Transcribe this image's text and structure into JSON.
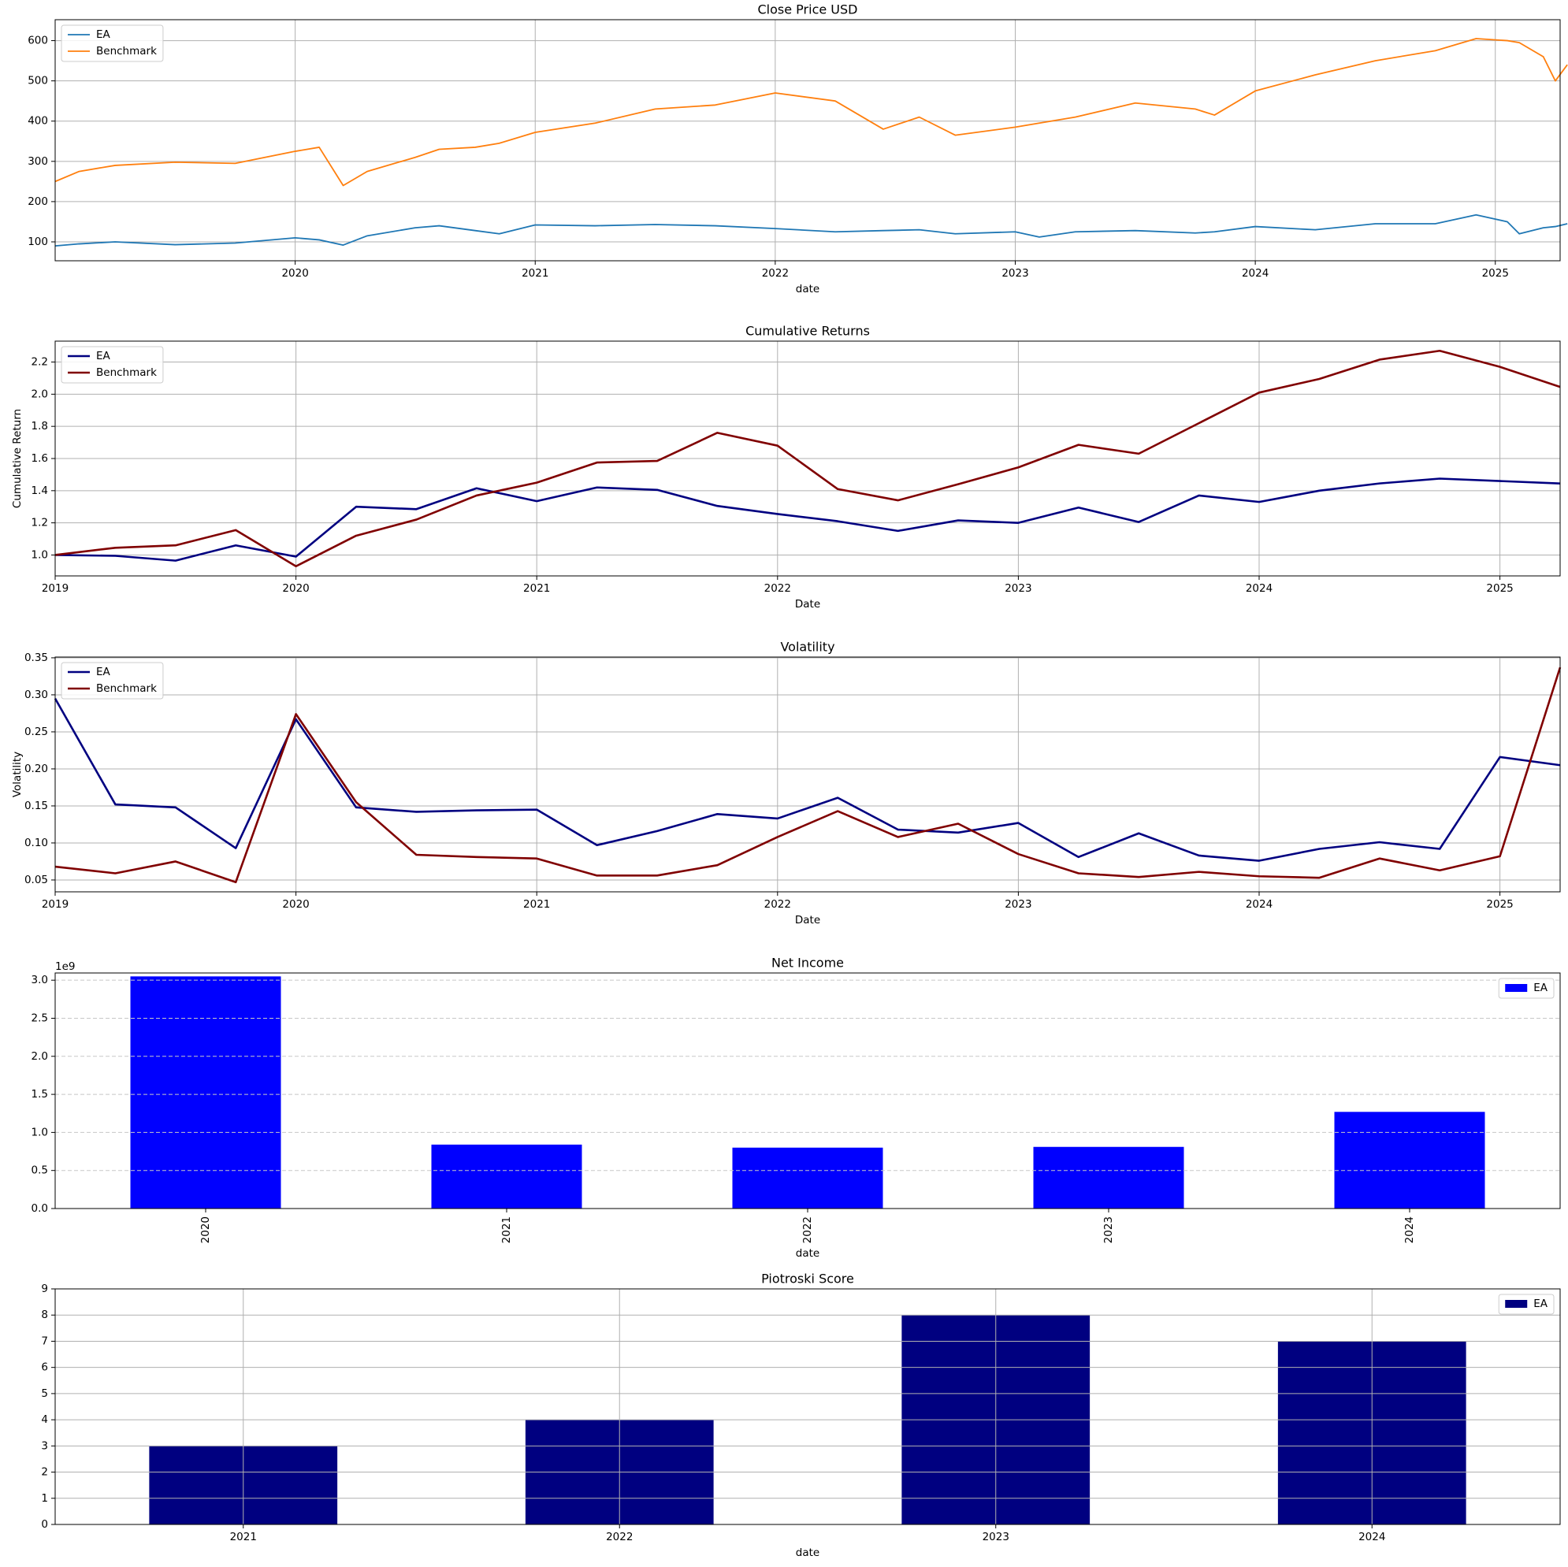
{
  "chart_data": [
    {
      "type": "line",
      "title": "Close Price USD",
      "xlabel": "date",
      "x": [
        2019.0,
        2019.1,
        2019.25,
        2019.5,
        2019.75,
        2020.0,
        2020.1,
        2020.2,
        2020.3,
        2020.5,
        2020.6,
        2020.75,
        2020.85,
        2021.0,
        2021.25,
        2021.5,
        2021.75,
        2022.0,
        2022.25,
        2022.45,
        2022.6,
        2022.75,
        2023.0,
        2023.1,
        2023.25,
        2023.5,
        2023.75,
        2023.83,
        2024.0,
        2024.25,
        2024.5,
        2024.75,
        2024.92,
        2025.05,
        2025.1,
        2025.2,
        2025.25,
        2025.3
      ],
      "series": [
        {
          "name": "EA",
          "color": "#1f77b4",
          "values": [
            90,
            95,
            100,
            93,
            97,
            110,
            105,
            92,
            115,
            135,
            140,
            128,
            120,
            142,
            140,
            143,
            140,
            133,
            125,
            128,
            130,
            120,
            125,
            112,
            125,
            128,
            122,
            125,
            138,
            130,
            145,
            145,
            167,
            150,
            120,
            135,
            138,
            145
          ]
        },
        {
          "name": "Benchmark",
          "color": "#ff7f0e",
          "values": [
            250,
            275,
            290,
            298,
            295,
            325,
            335,
            240,
            275,
            310,
            330,
            335,
            345,
            372,
            395,
            430,
            440,
            470,
            450,
            380,
            410,
            365,
            385,
            395,
            410,
            445,
            430,
            415,
            475,
            515,
            550,
            575,
            605,
            600,
            595,
            560,
            500,
            540
          ]
        }
      ],
      "xlim": [
        2019.0,
        2025.27
      ],
      "xticks": [
        2020,
        2021,
        2022,
        2023,
        2024,
        2025
      ],
      "ylim": [
        53,
        652
      ],
      "yticks": [
        100,
        200,
        300,
        400,
        500,
        600
      ],
      "grid": "both",
      "legend": "upper left"
    },
    {
      "type": "line",
      "title": "Cumulative Returns",
      "xlabel": "Date",
      "ylabel": "Cumulative Return",
      "x": [
        2019,
        2019.25,
        2019.5,
        2019.75,
        2020,
        2020.25,
        2020.5,
        2020.75,
        2021,
        2021.25,
        2021.5,
        2021.75,
        2022,
        2022.25,
        2022.5,
        2022.75,
        2023,
        2023.25,
        2023.5,
        2023.75,
        2024,
        2024.25,
        2024.5,
        2024.75,
        2025,
        2025.25
      ],
      "series": [
        {
          "name": "EA",
          "color": "#000080",
          "values": [
            1.0,
            0.995,
            0.965,
            1.06,
            0.99,
            1.3,
            1.285,
            1.415,
            1.335,
            1.42,
            1.405,
            1.305,
            1.255,
            1.21,
            1.15,
            1.215,
            1.2,
            1.295,
            1.205,
            1.37,
            1.33,
            1.4,
            1.445,
            1.475,
            1.46,
            1.445
          ]
        },
        {
          "name": "Benchmark",
          "color": "#800000",
          "values": [
            1.0,
            1.045,
            1.06,
            1.155,
            0.93,
            1.12,
            1.22,
            1.37,
            1.45,
            1.575,
            1.585,
            1.76,
            1.68,
            1.41,
            1.34,
            1.44,
            1.545,
            1.685,
            1.63,
            1.82,
            2.01,
            2.095,
            2.215,
            2.27,
            2.17,
            2.045
          ]
        }
      ],
      "xlim": [
        2019,
        2025.25
      ],
      "xticks": [
        2019,
        2020,
        2021,
        2022,
        2023,
        2024,
        2025
      ],
      "ylim": [
        0.87,
        2.33
      ],
      "yticks": [
        {
          "value": 1,
          "label": "1.0"
        },
        1.2,
        1.4,
        1.6,
        1.8,
        {
          "value": 2,
          "label": "2.0"
        },
        2.2
      ],
      "grid": "both",
      "legend": "upper left"
    },
    {
      "type": "line",
      "title": "Volatility",
      "xlabel": "Date",
      "ylabel": "Volatility",
      "x": [
        2019,
        2019.25,
        2019.5,
        2019.75,
        2020,
        2020.25,
        2020.5,
        2020.75,
        2021,
        2021.25,
        2021.5,
        2021.75,
        2022,
        2022.25,
        2022.5,
        2022.75,
        2023,
        2023.25,
        2023.5,
        2023.75,
        2024,
        2024.25,
        2024.5,
        2024.75,
        2025,
        2025.25
      ],
      "series": [
        {
          "name": "EA",
          "color": "#000080",
          "values": [
            0.295,
            0.152,
            0.148,
            0.093,
            0.267,
            0.148,
            0.142,
            0.144,
            0.145,
            0.097,
            0.116,
            0.139,
            0.133,
            0.161,
            0.118,
            0.114,
            0.127,
            0.081,
            0.113,
            0.083,
            0.076,
            0.092,
            0.101,
            0.092,
            0.216,
            0.205
          ]
        },
        {
          "name": "Benchmark",
          "color": "#800000",
          "values": [
            0.068,
            0.059,
            0.075,
            0.047,
            0.274,
            0.155,
            0.084,
            0.081,
            0.079,
            0.056,
            0.056,
            0.07,
            0.108,
            0.143,
            0.108,
            0.126,
            0.085,
            0.059,
            0.054,
            0.061,
            0.055,
            0.053,
            0.079,
            0.063,
            0.082,
            0.337
          ]
        }
      ],
      "xlim": [
        2019,
        2025.25
      ],
      "xticks": [
        2019,
        2020,
        2021,
        2022,
        2023,
        2024,
        2025
      ],
      "ylim": [
        0.034,
        0.351
      ],
      "yticks": [
        0.05,
        {
          "value": 0.1,
          "label": "0.10"
        },
        0.15,
        {
          "value": 0.2,
          "label": "0.20"
        },
        0.25,
        {
          "value": 0.3,
          "label": "0.30"
        },
        0.35
      ],
      "grid": "both",
      "legend": "upper left"
    },
    {
      "type": "bar",
      "title": "Net Income",
      "xlabel": "date",
      "y_offset_label": "1e9",
      "categories": [
        "2020",
        "2021",
        "2022",
        "2023",
        "2024"
      ],
      "series": [
        {
          "name": "EA",
          "color": "#0000ff",
          "values": [
            3050000000,
            840000000,
            800000000,
            810000000,
            1270000000
          ]
        }
      ],
      "ylim": [
        0,
        3095000000
      ],
      "yticks": [
        {
          "value": 0,
          "label": "0.0"
        },
        {
          "value": 500000000,
          "label": "0.5"
        },
        {
          "value": 1000000000,
          "label": "1.0"
        },
        {
          "value": 1500000000,
          "label": "1.5"
        },
        {
          "value": 2000000000,
          "label": "2.0"
        },
        {
          "value": 2500000000,
          "label": "2.5"
        },
        {
          "value": 3000000000,
          "label": "3.0"
        }
      ],
      "grid": "y",
      "grid_style": "dashed",
      "xtick_rotation": 90,
      "legend": "upper right"
    },
    {
      "type": "bar",
      "title": "Piotroski Score",
      "xlabel": "date",
      "categories": [
        "2021",
        "2022",
        "2023",
        "2024"
      ],
      "series": [
        {
          "name": "EA",
          "color": "#000080",
          "values": [
            3,
            4,
            8,
            7
          ]
        }
      ],
      "ylim": [
        0,
        9
      ],
      "yticks": [
        0,
        1,
        2,
        3,
        4,
        5,
        6,
        7,
        8,
        9
      ],
      "grid": "both",
      "legend": "upper right"
    }
  ]
}
